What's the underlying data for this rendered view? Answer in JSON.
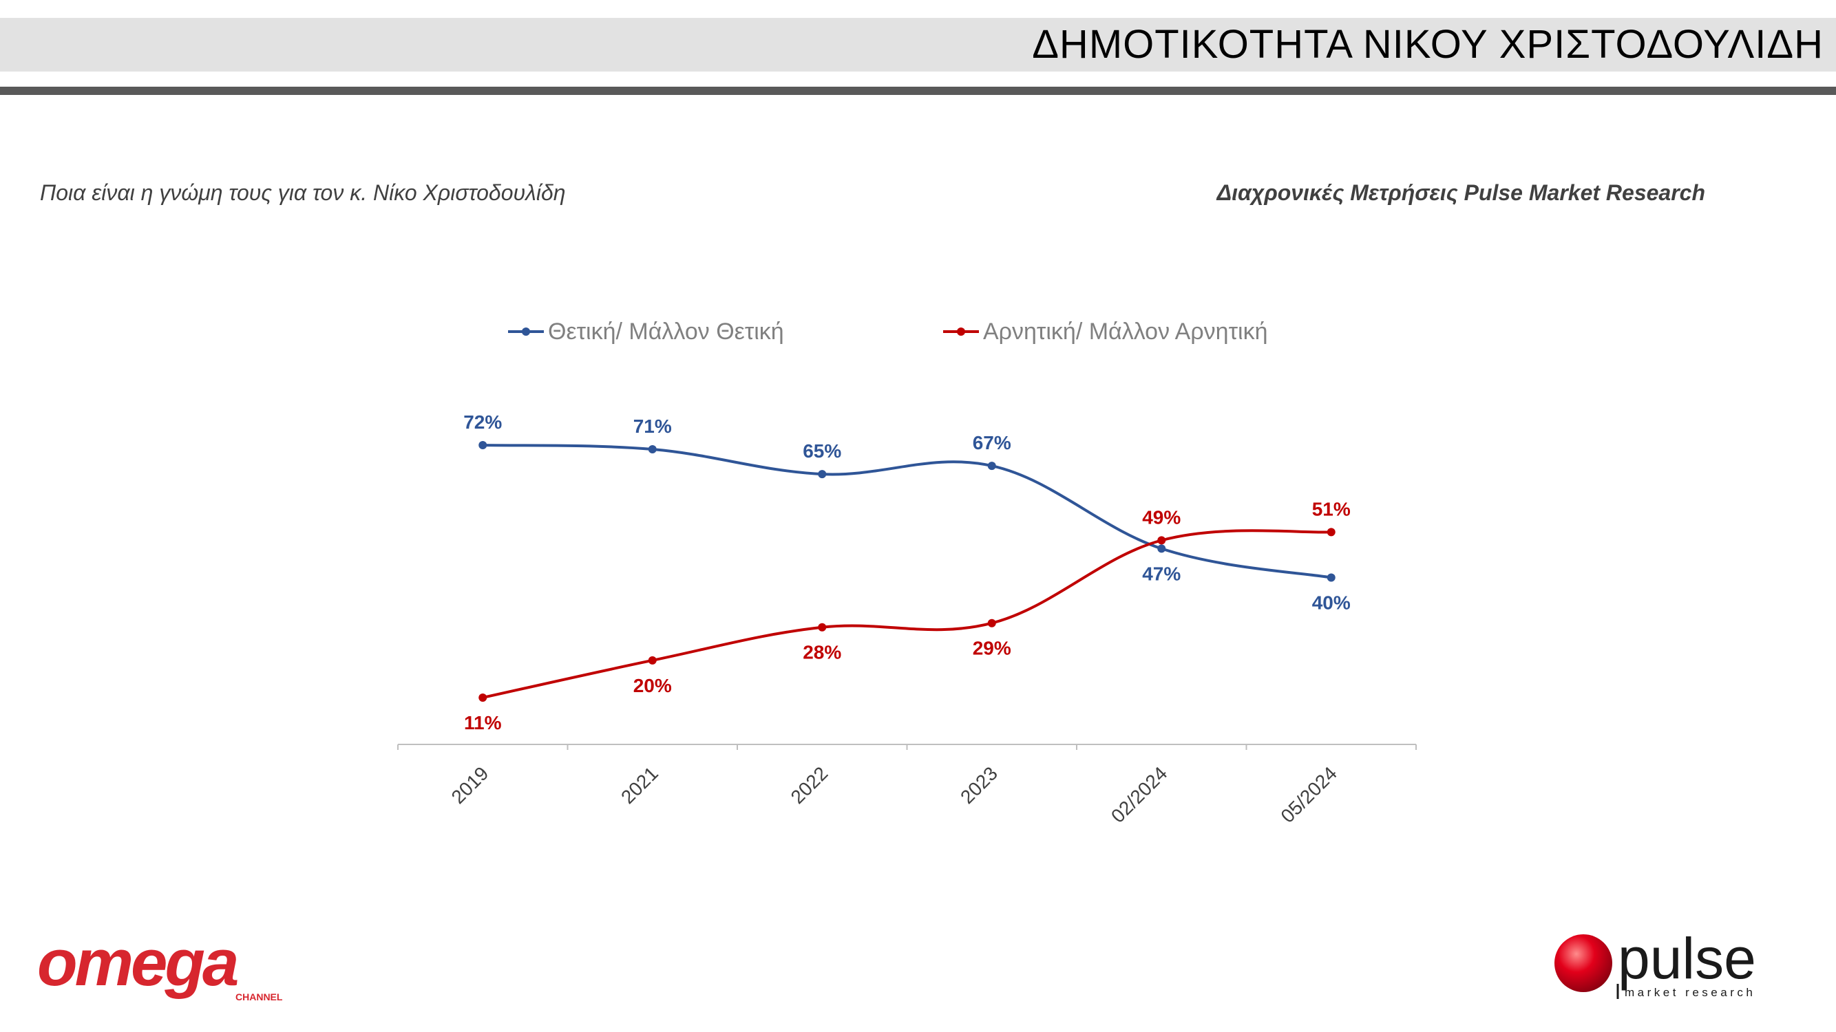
{
  "header": {
    "title": "ΔΗΜΟΤΙΚΟΤΗΤΑ ΝΙΚΟΥ ΧΡΙΣΤΟΔΟΥΛΙΔΗ",
    "question": "Ποια είναι η γνώμη τους για τον κ. Νίκο Χριστοδουλίδη",
    "source_note": "Διαχρονικές Μετρήσεις Pulse Market Research"
  },
  "chart_data": {
    "type": "line",
    "categories": [
      "2019",
      "2021",
      "2022",
      "2023",
      "02/2024",
      "05/2024"
    ],
    "series": [
      {
        "name": "Θετική/ Μάλλον Θετική",
        "color": "#2F5597",
        "values": [
          72,
          71,
          65,
          67,
          47,
          40
        ],
        "labels": [
          "72%",
          "71%",
          "65%",
          "67%",
          "47%",
          "40%"
        ]
      },
      {
        "name": "Αρνητική/ Μάλλον Αρνητική",
        "color": "#C00000",
        "values": [
          11,
          20,
          28,
          29,
          49,
          51
        ],
        "labels": [
          "11%",
          "20%",
          "28%",
          "29%",
          "49%",
          "51%"
        ]
      }
    ],
    "legend_position": "top",
    "smooth": true,
    "grid": false,
    "ylim": [
      0,
      80
    ]
  },
  "logos": {
    "omega": {
      "text": "omega",
      "subtext": "CHANNEL",
      "color": "#D7262E"
    },
    "pulse": {
      "text": "pulse",
      "subtext": "market research",
      "color": "#E2001A"
    }
  }
}
